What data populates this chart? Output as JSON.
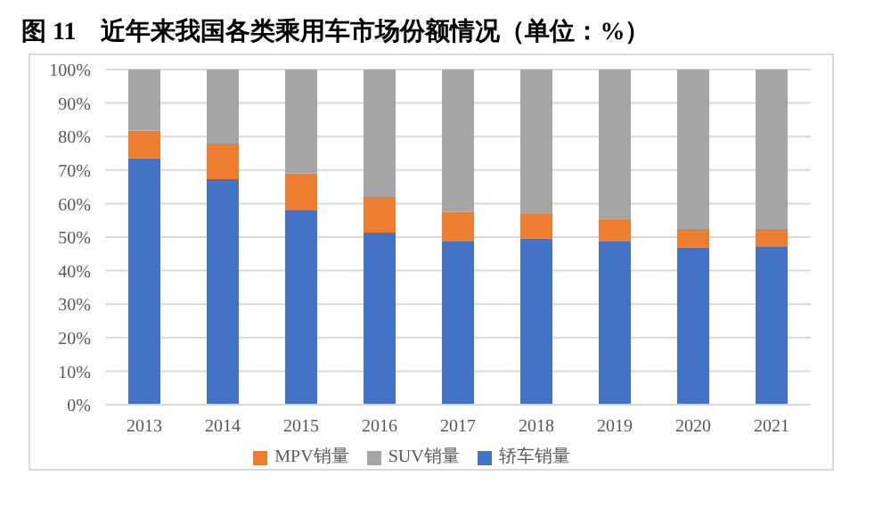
{
  "chart_data": {
    "type": "bar",
    "title": "图 11　近年来我国各类乘用车市场份额情况（单位：%）",
    "categories": [
      "2013",
      "2014",
      "2015",
      "2016",
      "2017",
      "2018",
      "2019",
      "2020",
      "2021"
    ],
    "stacked": true,
    "series": [
      {
        "name": "轿车销量",
        "color": "#4472c4",
        "values": [
          73.5,
          67.3,
          58.2,
          51.3,
          48.9,
          49.6,
          48.9,
          46.9,
          47.3
        ]
      },
      {
        "name": "MPV销量",
        "color": "#ed7d31",
        "values": [
          8.3,
          10.6,
          10.8,
          10.7,
          8.6,
          7.3,
          6.6,
          5.5,
          5.1
        ]
      },
      {
        "name": "SUV销量",
        "color": "#a5a5a5",
        "values": [
          18.2,
          22.1,
          31.0,
          38.0,
          42.5,
          43.1,
          44.5,
          47.6,
          47.6
        ]
      }
    ],
    "ylim": [
      0,
      100
    ],
    "yticks": [
      {
        "value": 0,
        "label": "0%"
      },
      {
        "value": 10,
        "label": "10%"
      },
      {
        "value": 20,
        "label": "20%"
      },
      {
        "value": 30,
        "label": "30%"
      },
      {
        "value": 40,
        "label": "40%"
      },
      {
        "value": 50,
        "label": "50%"
      },
      {
        "value": 60,
        "label": "60%"
      },
      {
        "value": 70,
        "label": "70%"
      },
      {
        "value": 80,
        "label": "80%"
      },
      {
        "value": 90,
        "label": "90%"
      },
      {
        "value": 100,
        "label": "100%"
      }
    ],
    "grid": "y",
    "legend": "bottom"
  }
}
